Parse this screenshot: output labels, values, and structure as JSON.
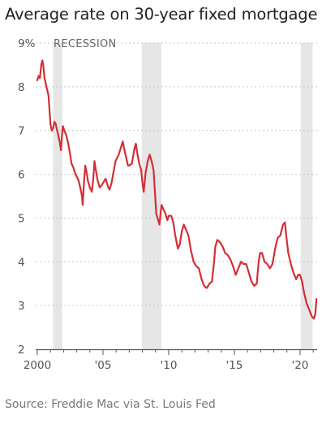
{
  "chart_data": {
    "type": "line",
    "title": "Average rate on 30-year fixed mortgage",
    "source": "Source: Freddie Mac via St. Louis Fed",
    "recession_label": "RECESSION",
    "y_tick_labels": [
      "9%",
      "8",
      "7",
      "6",
      "5",
      "4",
      "3",
      "2"
    ],
    "y_tick_values": [
      9,
      8,
      7,
      6,
      5,
      4,
      3,
      2
    ],
    "x_tick_labels": [
      "2000",
      "'05",
      "'10",
      "'15",
      "'20"
    ],
    "x_tick_values": [
      2000,
      2005,
      2010,
      2015,
      2020
    ],
    "ylim": [
      2,
      9
    ],
    "xlim": [
      2000,
      2021.3
    ],
    "grid": "horizontal dashed",
    "colors": {
      "line": "#d42e36",
      "recession": "#e6e6e6",
      "grid": "#c8c8c8",
      "axis": "#555555"
    },
    "recessions": [
      [
        2001.2,
        2001.9
      ],
      [
        2007.95,
        2009.45
      ],
      [
        2020.05,
        2020.95
      ]
    ],
    "series": [
      {
        "x": [
          2000.0,
          2000.1,
          2000.2,
          2000.3,
          2000.38,
          2000.45,
          2000.55,
          2000.7,
          2000.85,
          2001.0,
          2001.1,
          2001.2,
          2001.3,
          2001.4,
          2001.55,
          2001.7,
          2001.8,
          2001.87,
          2001.95,
          2002.05,
          2002.2,
          2002.35,
          2002.5,
          2002.6,
          2002.75,
          2002.9,
          2003.0,
          2003.15,
          2003.3,
          2003.4,
          2003.45,
          2003.55,
          2003.65,
          2003.75,
          2003.85,
          2004.0,
          2004.15,
          2004.25,
          2004.35,
          2004.45,
          2004.6,
          2004.75,
          2004.9,
          2005.0,
          2005.2,
          2005.4,
          2005.5,
          2005.65,
          2005.8,
          2005.95,
          2006.2,
          2006.4,
          2006.5,
          2006.6,
          2006.75,
          2006.9,
          2007.0,
          2007.2,
          2007.4,
          2007.5,
          2007.6,
          2007.75,
          2007.9,
          2008.0,
          2008.1,
          2008.25,
          2008.4,
          2008.55,
          2008.7,
          2008.85,
          2008.95,
          2009.05,
          2009.2,
          2009.3,
          2009.45,
          2009.6,
          2009.75,
          2009.9,
          2010.0,
          2010.2,
          2010.35,
          2010.5,
          2010.7,
          2010.85,
          2011.0,
          2011.15,
          2011.3,
          2011.5,
          2011.7,
          2011.9,
          2012.1,
          2012.3,
          2012.5,
          2012.7,
          2012.9,
          2013.1,
          2013.3,
          2013.45,
          2013.55,
          2013.7,
          2013.9,
          2014.1,
          2014.3,
          2014.5,
          2014.7,
          2014.9,
          2015.1,
          2015.3,
          2015.5,
          2015.7,
          2015.9,
          2016.1,
          2016.3,
          2016.5,
          2016.7,
          2016.85,
          2016.95,
          2017.1,
          2017.3,
          2017.5,
          2017.7,
          2017.9,
          2018.1,
          2018.3,
          2018.5,
          2018.7,
          2018.85,
          2018.95,
          2019.1,
          2019.3,
          2019.5,
          2019.7,
          2019.85,
          2020.0,
          2020.15,
          2020.3,
          2020.5,
          2020.7,
          2020.9,
          2021.05,
          2021.15,
          2021.25
        ],
        "values": [
          8.15,
          8.25,
          8.2,
          8.5,
          8.6,
          8.5,
          8.2,
          8.0,
          7.8,
          7.15,
          7.0,
          7.05,
          7.2,
          7.15,
          6.95,
          6.75,
          6.55,
          6.85,
          7.1,
          7.0,
          6.9,
          6.7,
          6.45,
          6.25,
          6.15,
          6.0,
          5.95,
          5.85,
          5.65,
          5.5,
          5.3,
          5.8,
          6.2,
          6.05,
          5.85,
          5.7,
          5.6,
          5.85,
          6.3,
          6.1,
          5.85,
          5.7,
          5.75,
          5.8,
          5.9,
          5.7,
          5.65,
          5.8,
          6.05,
          6.3,
          6.45,
          6.65,
          6.75,
          6.6,
          6.4,
          6.2,
          6.2,
          6.25,
          6.6,
          6.7,
          6.5,
          6.25,
          6.1,
          5.8,
          5.6,
          6.05,
          6.3,
          6.45,
          6.3,
          6.1,
          5.6,
          5.1,
          4.95,
          4.85,
          5.3,
          5.2,
          5.1,
          4.95,
          5.05,
          5.05,
          4.9,
          4.6,
          4.3,
          4.4,
          4.7,
          4.85,
          4.75,
          4.6,
          4.25,
          4.0,
          3.9,
          3.85,
          3.6,
          3.45,
          3.4,
          3.5,
          3.55,
          4.0,
          4.35,
          4.5,
          4.45,
          4.35,
          4.2,
          4.15,
          4.05,
          3.9,
          3.7,
          3.85,
          4.0,
          3.95,
          3.95,
          3.75,
          3.55,
          3.45,
          3.5,
          4.0,
          4.2,
          4.2,
          4.0,
          3.95,
          3.85,
          3.95,
          4.3,
          4.55,
          4.6,
          4.85,
          4.9,
          4.6,
          4.2,
          3.95,
          3.75,
          3.6,
          3.7,
          3.7,
          3.55,
          3.3,
          3.05,
          2.9,
          2.75,
          2.7,
          2.8,
          3.15
        ]
      }
    ]
  }
}
